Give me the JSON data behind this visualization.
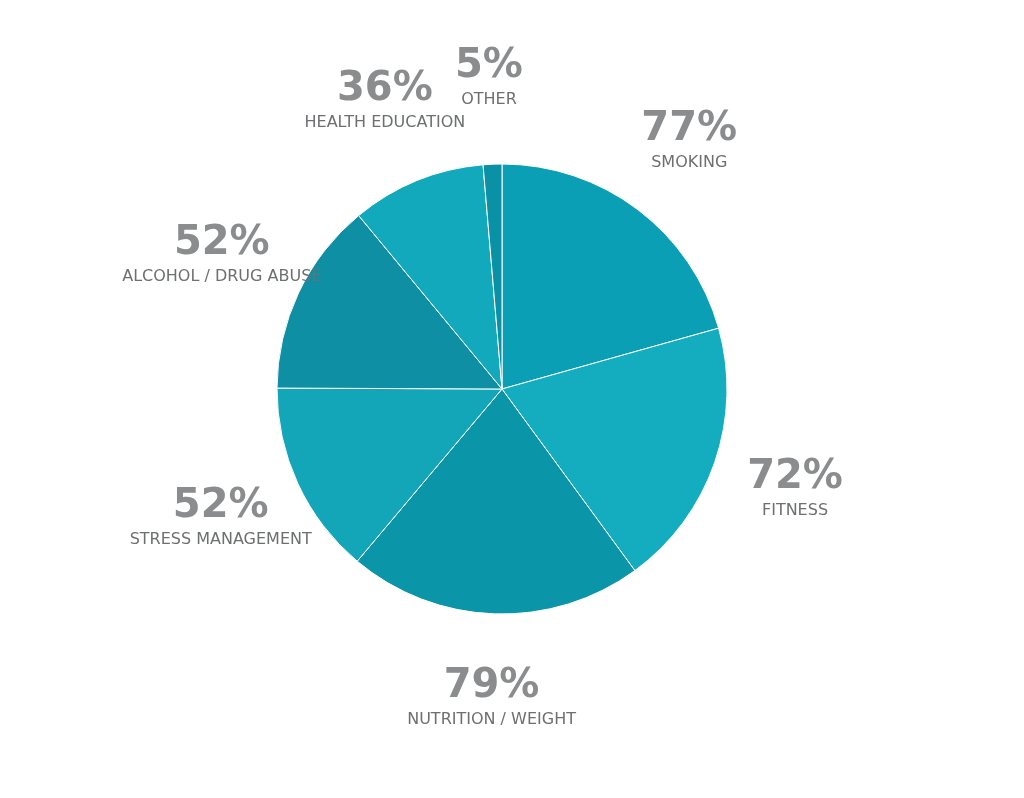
{
  "chart_data": {
    "type": "pie",
    "categories": [
      "SMOKING",
      "FITNESS",
      "NUTRITION / WEIGHT",
      "STRESS MANAGEMENT",
      "ALCOHOL / DRUG ABUSE",
      "HEALTH EDUCATION",
      "OTHER"
    ],
    "values": [
      77,
      72,
      79,
      52,
      52,
      36,
      5
    ],
    "value_labels": [
      "77%",
      "72%",
      "79%",
      "52%",
      "52%",
      "36%",
      "5%"
    ],
    "colors": [
      "#0a9fb5",
      "#14adbf",
      "#0b95a8",
      "#12a6b8",
      "#0e8fa3",
      "#13a9bc",
      "#0a91a6"
    ],
    "legend": false
  }
}
